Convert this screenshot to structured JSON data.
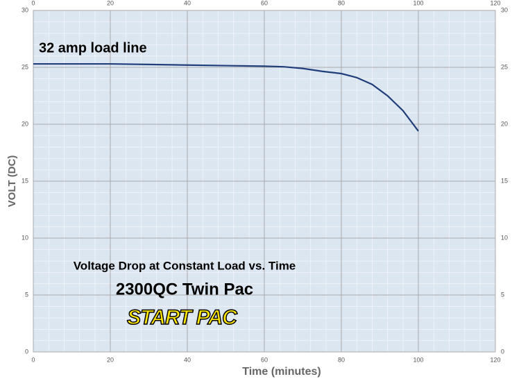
{
  "chart_data": {
    "type": "line",
    "title": "Voltage Drop at Constant Load vs. Time",
    "subtitle": "2300QC Twin Pac",
    "logo": "START PAC",
    "annotation": "32 amp load line",
    "x_label": "Time (minutes)",
    "y_label": "VOLT (DC)",
    "x": [
      0,
      10,
      20,
      30,
      40,
      50,
      60,
      65,
      70,
      75,
      80,
      84,
      88,
      92,
      96,
      100
    ],
    "series": [
      {
        "name": "32 amp load line",
        "color": "#1f3e7a",
        "values": [
          25.3,
          25.3,
          25.3,
          25.25,
          25.2,
          25.15,
          25.1,
          25.05,
          24.9,
          24.65,
          24.45,
          24.1,
          23.5,
          22.5,
          21.2,
          19.4
        ]
      }
    ],
    "xlim": [
      0,
      120
    ],
    "xticks": [
      0,
      20,
      40,
      60,
      80,
      100,
      120
    ],
    "ylim": [
      0,
      30
    ],
    "yticks": [
      0,
      5,
      10,
      15,
      20,
      25,
      30
    ],
    "grid": true
  }
}
